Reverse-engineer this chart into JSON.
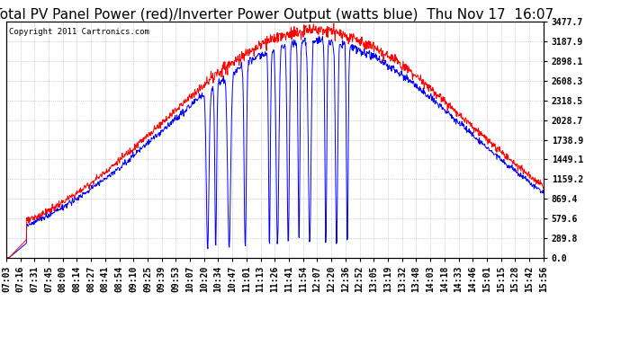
{
  "title": "Total PV Panel Power (red)/Inverter Power Output (watts blue)  Thu Nov 17  16:07",
  "copyright": "Copyright 2011 Cartronics.com",
  "background_color": "#ffffff",
  "plot_bg_color": "#ffffff",
  "grid_color": "#aaaaaa",
  "yticks": [
    0.0,
    289.8,
    579.6,
    869.4,
    1159.2,
    1449.1,
    1738.9,
    2028.7,
    2318.5,
    2608.3,
    2898.1,
    3187.9,
    3477.7
  ],
  "ymax": 3477.7,
  "xtick_labels": [
    "07:03",
    "07:16",
    "07:31",
    "07:45",
    "08:00",
    "08:14",
    "08:27",
    "08:41",
    "08:54",
    "09:10",
    "09:25",
    "09:39",
    "09:53",
    "10:07",
    "10:20",
    "10:34",
    "10:47",
    "11:01",
    "11:13",
    "11:26",
    "11:41",
    "11:54",
    "12:07",
    "12:20",
    "12:36",
    "12:52",
    "13:05",
    "13:19",
    "13:32",
    "13:48",
    "14:03",
    "14:18",
    "14:33",
    "14:46",
    "15:01",
    "15:15",
    "15:28",
    "15:42",
    "15:56"
  ],
  "red_color": "#ff0000",
  "blue_color": "#0000ff",
  "title_fontsize": 11,
  "tick_fontsize": 7,
  "copyright_fontsize": 6.5
}
